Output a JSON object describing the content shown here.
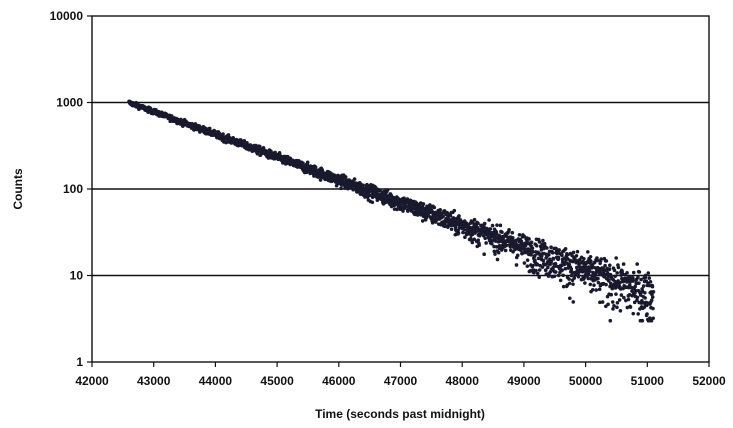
{
  "chart_data": {
    "type": "scatter",
    "title": "",
    "xlabel": "Time (seconds past midnight)",
    "ylabel": "Counts",
    "xlim": [
      42000,
      52000
    ],
    "ylim": [
      1,
      10000
    ],
    "yscale": "log",
    "grid": "horizontal",
    "x_ticks": [
      42000,
      43000,
      44000,
      45000,
      46000,
      47000,
      48000,
      49000,
      50000,
      51000,
      52000
    ],
    "x_tick_labels": [
      "42000",
      "43000",
      "44000",
      "45000",
      "46000",
      "47000",
      "48000",
      "49000",
      "50000",
      "51000",
      "52000"
    ],
    "y_ticks": [
      1,
      10,
      100,
      1000,
      10000
    ],
    "y_tick_labels": [
      "1",
      "10",
      "100",
      "1000",
      "10000"
    ],
    "marker_color": "#1a1a2e",
    "series": [
      {
        "x": [
          42600,
          42800,
          43000,
          43200,
          43400,
          43600,
          43800,
          44000,
          44200,
          44400,
          44600,
          44800,
          45000,
          45200,
          45400,
          45600,
          45800,
          46000,
          46200,
          46400,
          46600,
          46800,
          47000,
          47200,
          47400,
          47600,
          47800,
          48000,
          48200,
          48400,
          48600,
          48800,
          49000,
          49200,
          49400,
          49600,
          49800,
          50000,
          50200,
          50400,
          50600,
          50800,
          51000,
          51100
        ],
        "values": [
          1000,
          885,
          785,
          695,
          615,
          545,
          485,
          430,
          380,
          337,
          298,
          264,
          234,
          207,
          184,
          163,
          144,
          128,
          113,
          100,
          89,
          79,
          70,
          62,
          55,
          49,
          43,
          38,
          34,
          30,
          27,
          24,
          21,
          18.5,
          16.5,
          14.5,
          13,
          11.5,
          10.2,
          9,
          8,
          7,
          6.2,
          6
        ]
      }
    ]
  }
}
